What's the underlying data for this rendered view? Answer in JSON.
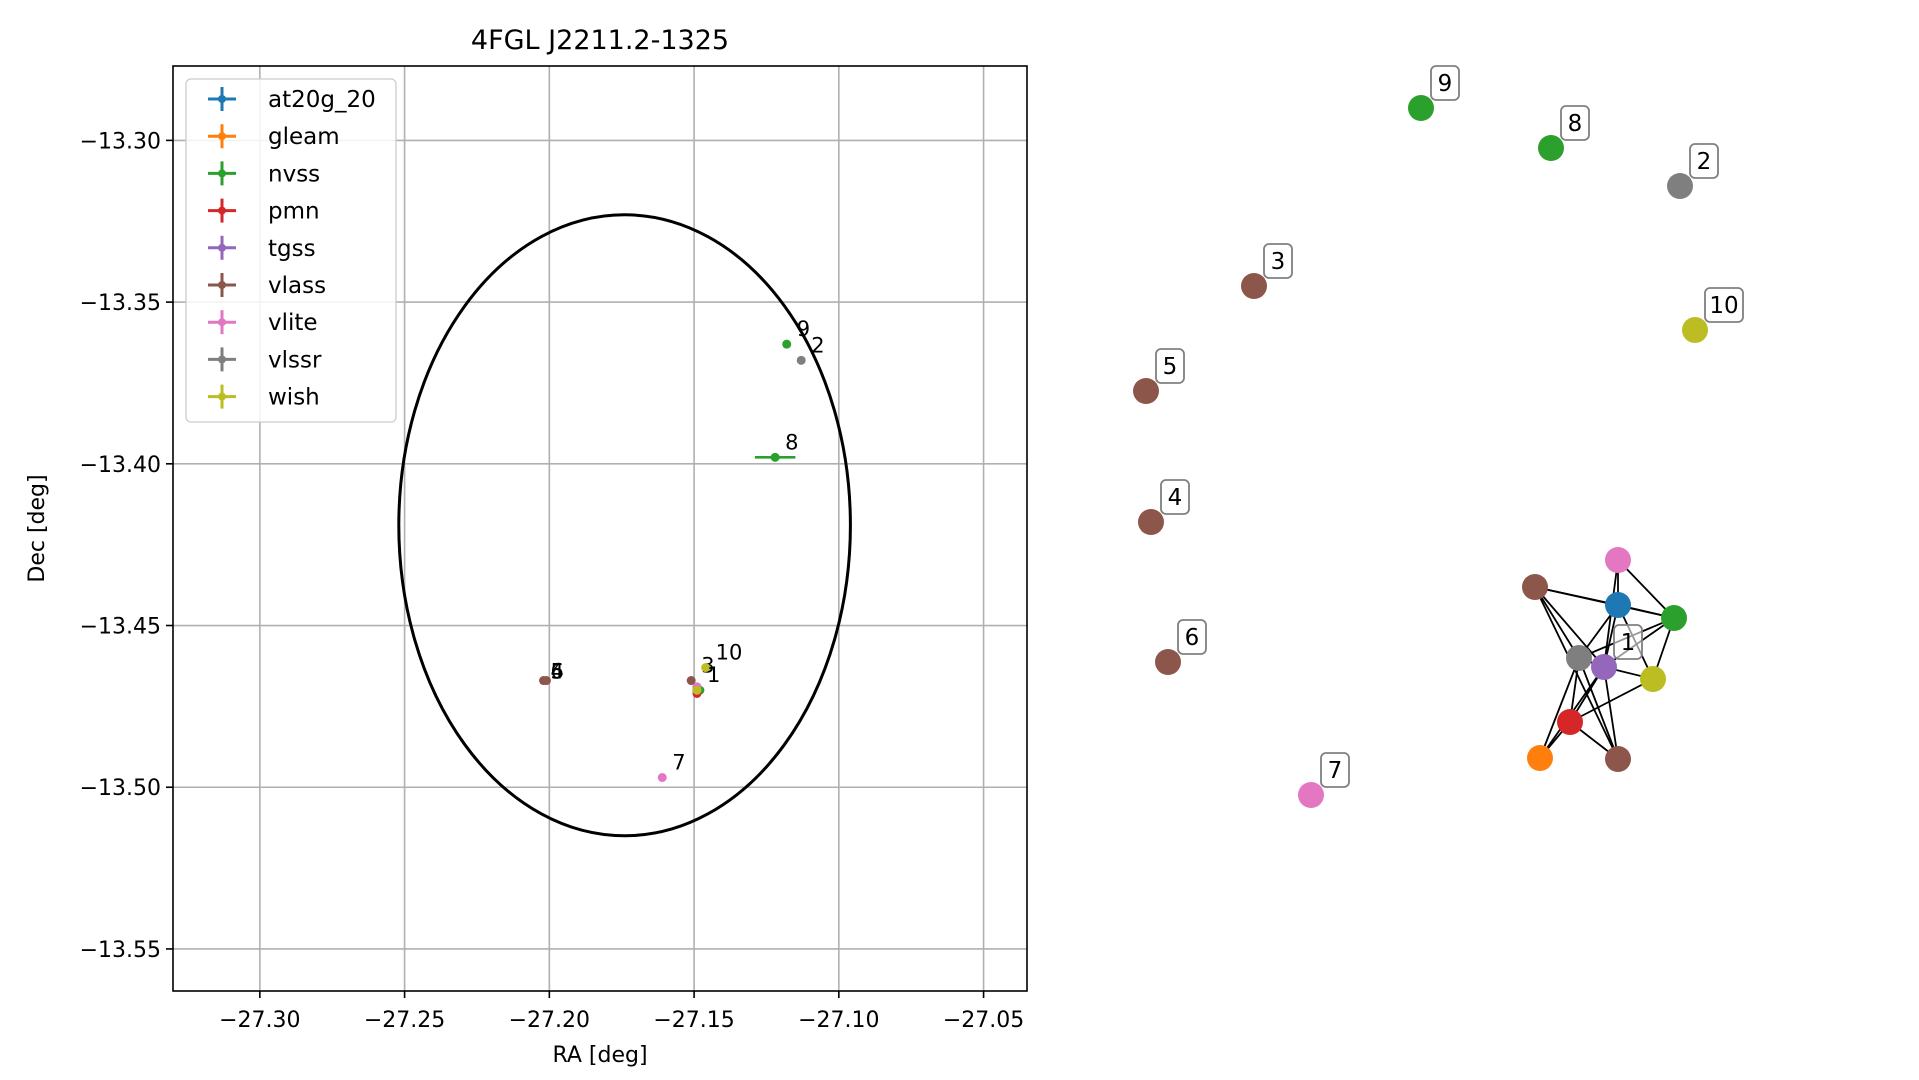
{
  "chart_data": [
    {
      "type": "scatter",
      "title": "4FGL J2211.2-1325",
      "xlabel": "RA [deg]",
      "ylabel": "Dec [deg]",
      "xlim": [
        -27.33,
        -27.035
      ],
      "ylim": [
        -13.563,
        -13.277
      ],
      "xticks": [
        -27.3,
        -27.25,
        -27.2,
        -27.15,
        -27.1,
        -27.05
      ],
      "yticks": [
        -13.3,
        -13.35,
        -13.4,
        -13.45,
        -13.5,
        -13.55
      ],
      "xtick_labels": [
        "−27.30",
        "−27.25",
        "−27.20",
        "−27.15",
        "−27.10",
        "−27.05"
      ],
      "ytick_labels": [
        "−13.30",
        "−13.35",
        "−13.40",
        "−13.45",
        "−13.50",
        "−13.55"
      ],
      "grid": true,
      "legend_position": "top-left",
      "ellipse": {
        "center": [
          -27.174,
          -13.419
        ],
        "rx": 0.078,
        "ry": 0.096,
        "color": "#000000"
      },
      "series": [
        {
          "name": "at20g_20",
          "color": "#1f77b4",
          "points": [
            {
              "x": -27.149,
              "y": -13.47,
              "label": ""
            }
          ]
        },
        {
          "name": "gleam",
          "color": "#ff7f0e",
          "points": [
            {
              "x": -27.149,
              "y": -13.47,
              "label": ""
            }
          ]
        },
        {
          "name": "nvss",
          "color": "#2ca02c",
          "points": [
            {
              "x": -27.118,
              "y": -13.363,
              "label": "9",
              "xerr": 0.0
            },
            {
              "x": -27.122,
              "y": -13.398,
              "label": "8",
              "xerr": 0.007
            },
            {
              "x": -27.148,
              "y": -13.47,
              "label": "",
              "xerr": 0.0
            }
          ]
        },
        {
          "name": "pmn",
          "color": "#d62728",
          "points": [
            {
              "x": -27.149,
              "y": -13.471,
              "label": ""
            }
          ]
        },
        {
          "name": "tgss",
          "color": "#9467bd",
          "points": [
            {
              "x": -27.149,
              "y": -13.47,
              "label": ""
            }
          ]
        },
        {
          "name": "vlass",
          "color": "#8c564b",
          "points": [
            {
              "x": -27.201,
              "y": -13.467,
              "label": ""
            },
            {
              "x": -27.151,
              "y": -13.467,
              "label": "3"
            },
            {
              "x": -27.202,
              "y": -13.467,
              "label": ""
            },
            {
              "x": -27.149,
              "y": -13.469,
              "label": ""
            }
          ]
        },
        {
          "name": "vlite",
          "color": "#e377c2",
          "points": [
            {
              "x": -27.161,
              "y": -13.497,
              "label": "7"
            },
            {
              "x": -27.149,
              "y": -13.469,
              "label": ""
            }
          ]
        },
        {
          "name": "vlssr",
          "color": "#7f7f7f",
          "points": [
            {
              "x": -27.113,
              "y": -13.368,
              "label": "2"
            },
            {
              "x": -27.149,
              "y": -13.47,
              "label": ""
            }
          ]
        },
        {
          "name": "wish",
          "color": "#bcbd22",
          "points": [
            {
              "x": -27.146,
              "y": -13.463,
              "label": "10"
            },
            {
              "x": -27.149,
              "y": -13.47,
              "label": "1"
            }
          ]
        }
      ],
      "overlap_labels": [
        "5",
        "6",
        "4"
      ]
    },
    {
      "type": "network",
      "nodes": [
        {
          "label": "9",
          "color": "#2ca02c"
        },
        {
          "label": "8",
          "color": "#2ca02c"
        },
        {
          "label": "2",
          "color": "#7f7f7f"
        },
        {
          "label": "3",
          "color": "#8c564b"
        },
        {
          "label": "10",
          "color": "#bcbd22"
        },
        {
          "label": "5",
          "color": "#8c564b"
        },
        {
          "label": "4",
          "color": "#8c564b"
        },
        {
          "label": "6",
          "color": "#8c564b"
        },
        {
          "label": "7",
          "color": "#e377c2"
        },
        {
          "label": "1",
          "color": "#9467bd"
        }
      ],
      "cluster_colors": [
        "#e377c2",
        "#8c564b",
        "#1f77b4",
        "#2ca02c",
        "#7f7f7f",
        "#9467bd",
        "#bcbd22",
        "#d62728",
        "#ff7f0e",
        "#8c564b"
      ],
      "edge_color": "#000000"
    }
  ]
}
